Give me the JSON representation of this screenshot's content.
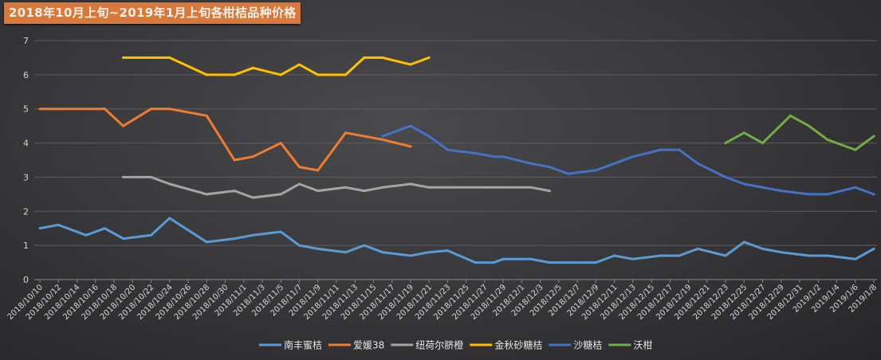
{
  "chart_data": {
    "type": "line",
    "title": "2018年10月上旬~2019年1月上旬各柑桔品种价格",
    "xlabel": "",
    "ylabel": "",
    "ylim": [
      0,
      7
    ],
    "yticks": [
      "0",
      "1",
      "2",
      "3",
      "4",
      "5",
      "6",
      "7"
    ],
    "xlim": [
      "2018/10/10",
      "2019/1/8"
    ],
    "xticks": [
      "2018/10/10",
      "2018/10/12",
      "2018/10/14",
      "2018/10/16",
      "2018/10/18",
      "2018/10/20",
      "2018/10/22",
      "2018/10/24",
      "2018/10/26",
      "2018/10/28",
      "2018/10/30",
      "2018/11/1",
      "2018/11/3",
      "2018/11/5",
      "2018/11/7",
      "2018/11/9",
      "2018/11/11",
      "2018/11/13",
      "2018/11/15",
      "2018/11/17",
      "2018/11/19",
      "2018/11/21",
      "2018/11/23",
      "2018/11/25",
      "2018/11/27",
      "2018/11/29",
      "2018/12/1",
      "2018/12/3",
      "2018/12/5",
      "2018/12/7",
      "2018/12/9",
      "2018/12/11",
      "2018/12/13",
      "2018/12/15",
      "2018/12/17",
      "2018/12/19",
      "2018/12/21",
      "2018/12/23",
      "2018/12/25",
      "2018/12/27",
      "2018/12/29",
      "2018/12/31",
      "2019/1/2",
      "2019/1/4",
      "2019/1/6",
      "2019/1/8"
    ],
    "grid": true,
    "legend": "bottom",
    "series": [
      {
        "name": "南丰蜜桔",
        "color": "#5b9bd5",
        "x": [
          "2018/10/10",
          "2018/10/12",
          "2018/10/15",
          "2018/10/17",
          "2018/10/19",
          "2018/10/22",
          "2018/10/24",
          "2018/10/28",
          "2018/10/31",
          "2018/11/2",
          "2018/11/5",
          "2018/11/7",
          "2018/11/9",
          "2018/11/12",
          "2018/11/14",
          "2018/11/16",
          "2018/11/19",
          "2018/11/21",
          "2018/11/23",
          "2018/11/26",
          "2018/11/28",
          "2018/11/29",
          "2018/12/2",
          "2018/12/4",
          "2018/12/9",
          "2018/12/11",
          "2018/12/13",
          "2018/12/16",
          "2018/12/18",
          "2018/12/20",
          "2018/12/23",
          "2018/12/25",
          "2018/12/27",
          "2018/12/29",
          "2019/1/1",
          "2019/1/3",
          "2019/1/6",
          "2019/1/8"
        ],
        "y": [
          1.5,
          1.6,
          1.3,
          1.5,
          1.2,
          1.3,
          1.8,
          1.1,
          1.2,
          1.3,
          1.4,
          1.0,
          0.9,
          0.8,
          1.0,
          0.8,
          0.7,
          0.8,
          0.85,
          0.5,
          0.5,
          0.6,
          0.6,
          0.5,
          0.5,
          0.7,
          0.6,
          0.7,
          0.7,
          0.9,
          0.7,
          1.1,
          0.9,
          0.8,
          0.7,
          0.7,
          0.6,
          0.9
        ]
      },
      {
        "name": "爱媛38",
        "color": "#ed7d31",
        "x": [
          "2018/10/10",
          "2018/10/17",
          "2018/10/19",
          "2018/10/22",
          "2018/10/24",
          "2018/10/28",
          "2018/10/31",
          "2018/11/2",
          "2018/11/5",
          "2018/11/7",
          "2018/11/9",
          "2018/11/12",
          "2018/11/16",
          "2018/11/19"
        ],
        "y": [
          5.0,
          5.0,
          4.5,
          5.0,
          5.0,
          4.8,
          3.5,
          3.6,
          4.0,
          3.3,
          3.2,
          4.3,
          4.1,
          3.9
        ]
      },
      {
        "name": "纽荷尔脐橙",
        "color": "#a5a5a5",
        "x": [
          "2018/10/19",
          "2018/10/22",
          "2018/10/24",
          "2018/10/28",
          "2018/10/31",
          "2018/11/2",
          "2018/11/5",
          "2018/11/7",
          "2018/11/9",
          "2018/11/12",
          "2018/11/14",
          "2018/11/16",
          "2018/11/19",
          "2018/11/21",
          "2018/12/2",
          "2018/12/4"
        ],
        "y": [
          3.0,
          3.0,
          2.8,
          2.5,
          2.6,
          2.4,
          2.5,
          2.8,
          2.6,
          2.7,
          2.6,
          2.7,
          2.8,
          2.7,
          2.7,
          2.6
        ]
      },
      {
        "name": "金秋砂糖桔",
        "color": "#ffc000",
        "x": [
          "2018/10/19",
          "2018/10/24",
          "2018/10/28",
          "2018/10/31",
          "2018/11/2",
          "2018/11/5",
          "2018/11/7",
          "2018/11/9",
          "2018/11/12",
          "2018/11/14",
          "2018/11/16",
          "2018/11/19",
          "2018/11/21"
        ],
        "y": [
          6.5,
          6.5,
          6.0,
          6.0,
          6.2,
          6.0,
          6.3,
          6.0,
          6.0,
          6.5,
          6.5,
          6.3,
          6.5
        ]
      },
      {
        "name": "沙糖桔",
        "color": "#4472c4",
        "x": [
          "2018/11/16",
          "2018/11/19",
          "2018/11/21",
          "2018/11/23",
          "2018/11/26",
          "2018/11/28",
          "2018/11/29",
          "2018/12/2",
          "2018/12/4",
          "2018/12/6",
          "2018/12/9",
          "2018/12/11",
          "2018/12/13",
          "2018/12/16",
          "2018/12/18",
          "2018/12/20",
          "2018/12/23",
          "2018/12/25",
          "2018/12/27",
          "2018/12/29",
          "2019/1/1",
          "2019/1/3",
          "2019/1/6",
          "2019/1/8"
        ],
        "y": [
          4.2,
          4.5,
          4.2,
          3.8,
          3.7,
          3.6,
          3.6,
          3.4,
          3.3,
          3.1,
          3.2,
          3.4,
          3.6,
          3.8,
          3.8,
          3.4,
          3.0,
          2.8,
          2.7,
          2.6,
          2.5,
          2.5,
          2.7,
          2.5
        ]
      },
      {
        "name": "沃柑",
        "color": "#70ad47",
        "x": [
          "2018/12/23",
          "2018/12/25",
          "2018/12/27",
          "2018/12/30",
          "2019/1/1",
          "2019/1/3",
          "2019/1/6",
          "2019/1/8"
        ],
        "y": [
          4.0,
          4.3,
          4.0,
          4.8,
          4.5,
          4.1,
          3.8,
          4.2
        ]
      }
    ]
  }
}
